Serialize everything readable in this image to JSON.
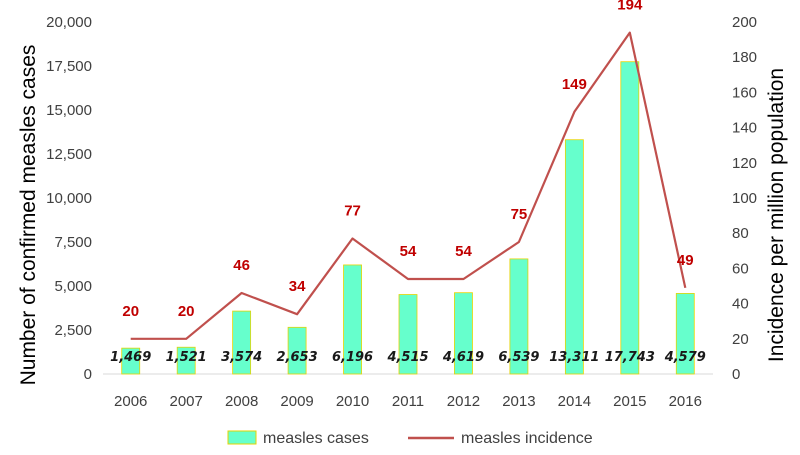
{
  "chart_data": {
    "type": "bar",
    "categories": [
      "2006",
      "2007",
      "2008",
      "2009",
      "2010",
      "2011",
      "2012",
      "2013",
      "2014",
      "2015",
      "2016"
    ],
    "series": [
      {
        "name": "measles cases",
        "kind": "bar",
        "axis": "left",
        "values": [
          1469,
          1521,
          3574,
          2653,
          6196,
          4515,
          4619,
          6539,
          13311,
          17743,
          4579
        ],
        "labels": [
          "1,469",
          "1,521",
          "3,574",
          "2,653",
          "6,196",
          "4,515",
          "4,619",
          "6,539",
          "13,311",
          "17,743",
          "4,579"
        ],
        "color": "#66ffcc",
        "border_color": "#e6d300"
      },
      {
        "name": "measles incidence",
        "kind": "line",
        "axis": "right",
        "values": [
          20,
          20,
          46,
          34,
          77,
          54,
          54,
          75,
          149,
          194,
          49
        ],
        "labels": [
          "20",
          "20",
          "46",
          "34",
          "77",
          "54",
          "54",
          "75",
          "149",
          "194",
          "49"
        ],
        "color": "#c0504d",
        "label_color": "#c00000"
      }
    ],
    "y_left": {
      "label": "Number of confirmed measles cases",
      "ylim": [
        0,
        20000
      ],
      "ticks": [
        0,
        2500,
        5000,
        7500,
        10000,
        12500,
        15000,
        17500,
        20000
      ],
      "tick_labels": [
        "0",
        "2,500",
        "5,000",
        "7,500",
        "10,000",
        "12,500",
        "15,000",
        "17,500",
        "20,000"
      ]
    },
    "y_right": {
      "label": "Incidence per million population",
      "ylim": [
        0,
        200
      ],
      "ticks": [
        0,
        20,
        40,
        60,
        80,
        100,
        120,
        140,
        160,
        180,
        200
      ],
      "tick_labels": [
        "0",
        "20",
        "40",
        "60",
        "80",
        "100",
        "120",
        "140",
        "160",
        "180",
        "200"
      ]
    },
    "grid": false,
    "legend": {
      "position": "bottom",
      "entries": [
        "measles cases",
        "measles incidence"
      ]
    }
  }
}
